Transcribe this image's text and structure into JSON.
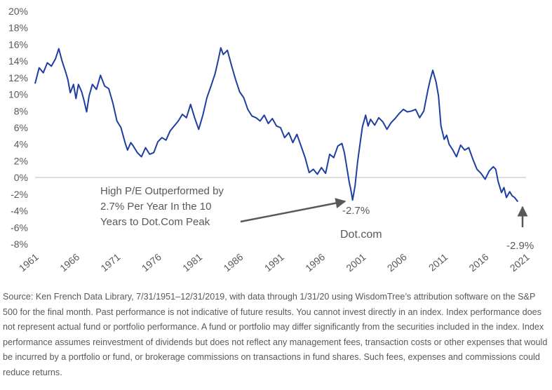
{
  "chart_data": {
    "type": "line",
    "colors": {
      "line": "#1f3fa0",
      "axis": "#bfbfbf",
      "text": "#595959",
      "arrow": "#595959"
    },
    "ylim": [
      -0.08,
      0.2
    ],
    "xlim": [
      1961,
      2021
    ],
    "y_ticks": [
      {
        "value": 0.2,
        "label": "20%"
      },
      {
        "value": 0.18,
        "label": "18%"
      },
      {
        "value": 0.16,
        "label": "16%"
      },
      {
        "value": 0.14,
        "label": "14%"
      },
      {
        "value": 0.12,
        "label": "12%"
      },
      {
        "value": 0.1,
        "label": "10%"
      },
      {
        "value": 0.08,
        "label": "8%"
      },
      {
        "value": 0.06,
        "label": "6%"
      },
      {
        "value": 0.04,
        "label": "4%"
      },
      {
        "value": 0.02,
        "label": "2%"
      },
      {
        "value": 0.0,
        "label": "0%"
      },
      {
        "value": -0.02,
        "label": "-2%"
      },
      {
        "value": -0.04,
        "label": "-4%"
      },
      {
        "value": -0.06,
        "label": "-6%"
      },
      {
        "value": -0.08,
        "label": "-8%"
      }
    ],
    "x_ticks": [
      {
        "value": 1961,
        "label": "1961"
      },
      {
        "value": 1966,
        "label": "1966"
      },
      {
        "value": 1971,
        "label": "1971"
      },
      {
        "value": 1976,
        "label": "1976"
      },
      {
        "value": 1981,
        "label": "1981"
      },
      {
        "value": 1986,
        "label": "1986"
      },
      {
        "value": 1991,
        "label": "1991"
      },
      {
        "value": 1996,
        "label": "1996"
      },
      {
        "value": 2001,
        "label": "2001"
      },
      {
        "value": 2006,
        "label": "2006"
      },
      {
        "value": 2011,
        "label": "2011"
      },
      {
        "value": 2016,
        "label": "2016"
      },
      {
        "value": 2021,
        "label": "2021"
      }
    ],
    "series": [
      {
        "points": [
          [
            1961.0,
            0.113
          ],
          [
            1961.5,
            0.132
          ],
          [
            1962.0,
            0.126
          ],
          [
            1962.5,
            0.138
          ],
          [
            1963.0,
            0.134
          ],
          [
            1963.5,
            0.143
          ],
          [
            1963.9,
            0.155
          ],
          [
            1964.3,
            0.14
          ],
          [
            1964.7,
            0.128
          ],
          [
            1965.0,
            0.118
          ],
          [
            1965.3,
            0.102
          ],
          [
            1965.7,
            0.112
          ],
          [
            1966.0,
            0.095
          ],
          [
            1966.3,
            0.112
          ],
          [
            1966.7,
            0.103
          ],
          [
            1967.0,
            0.092
          ],
          [
            1967.3,
            0.079
          ],
          [
            1967.6,
            0.098
          ],
          [
            1968.0,
            0.112
          ],
          [
            1968.5,
            0.106
          ],
          [
            1969.0,
            0.123
          ],
          [
            1969.5,
            0.11
          ],
          [
            1970.0,
            0.107
          ],
          [
            1970.5,
            0.09
          ],
          [
            1971.0,
            0.068
          ],
          [
            1971.5,
            0.06
          ],
          [
            1972.0,
            0.042
          ],
          [
            1972.3,
            0.033
          ],
          [
            1972.7,
            0.042
          ],
          [
            1973.0,
            0.038
          ],
          [
            1973.5,
            0.03
          ],
          [
            1974.0,
            0.025
          ],
          [
            1974.5,
            0.036
          ],
          [
            1975.0,
            0.028
          ],
          [
            1975.5,
            0.03
          ],
          [
            1976.0,
            0.043
          ],
          [
            1976.5,
            0.048
          ],
          [
            1977.0,
            0.045
          ],
          [
            1977.5,
            0.056
          ],
          [
            1978.0,
            0.062
          ],
          [
            1978.5,
            0.068
          ],
          [
            1979.0,
            0.076
          ],
          [
            1979.5,
            0.072
          ],
          [
            1980.0,
            0.088
          ],
          [
            1980.5,
            0.072
          ],
          [
            1981.0,
            0.058
          ],
          [
            1981.5,
            0.075
          ],
          [
            1982.0,
            0.096
          ],
          [
            1982.5,
            0.11
          ],
          [
            1983.0,
            0.125
          ],
          [
            1983.4,
            0.142
          ],
          [
            1983.7,
            0.156
          ],
          [
            1984.0,
            0.148
          ],
          [
            1984.5,
            0.153
          ],
          [
            1985.0,
            0.135
          ],
          [
            1985.5,
            0.118
          ],
          [
            1986.0,
            0.103
          ],
          [
            1986.5,
            0.096
          ],
          [
            1987.0,
            0.082
          ],
          [
            1987.5,
            0.074
          ],
          [
            1988.0,
            0.072
          ],
          [
            1988.5,
            0.068
          ],
          [
            1989.0,
            0.075
          ],
          [
            1989.5,
            0.065
          ],
          [
            1990.0,
            0.071
          ],
          [
            1990.5,
            0.062
          ],
          [
            1991.0,
            0.06
          ],
          [
            1991.5,
            0.048
          ],
          [
            1992.0,
            0.054
          ],
          [
            1992.5,
            0.042
          ],
          [
            1993.0,
            0.052
          ],
          [
            1993.5,
            0.038
          ],
          [
            1994.0,
            0.024
          ],
          [
            1994.5,
            0.006
          ],
          [
            1995.0,
            0.01
          ],
          [
            1995.5,
            0.004
          ],
          [
            1996.0,
            0.012
          ],
          [
            1996.5,
            0.005
          ],
          [
            1997.0,
            0.028
          ],
          [
            1997.5,
            0.024
          ],
          [
            1998.0,
            0.038
          ],
          [
            1998.5,
            0.041
          ],
          [
            1998.8,
            0.03
          ],
          [
            1999.1,
            0.012
          ],
          [
            1999.4,
            -0.006
          ],
          [
            1999.6,
            -0.015
          ],
          [
            1999.8,
            -0.027
          ],
          [
            2000.1,
            -0.01
          ],
          [
            2000.4,
            0.018
          ],
          [
            2000.7,
            0.04
          ],
          [
            2001.0,
            0.061
          ],
          [
            2001.4,
            0.075
          ],
          [
            2001.7,
            0.062
          ],
          [
            2002.0,
            0.07
          ],
          [
            2002.5,
            0.063
          ],
          [
            2003.0,
            0.072
          ],
          [
            2003.5,
            0.067
          ],
          [
            2004.0,
            0.058
          ],
          [
            2004.5,
            0.066
          ],
          [
            2005.0,
            0.071
          ],
          [
            2005.5,
            0.077
          ],
          [
            2006.0,
            0.082
          ],
          [
            2006.5,
            0.079
          ],
          [
            2007.0,
            0.08
          ],
          [
            2007.5,
            0.082
          ],
          [
            2008.0,
            0.072
          ],
          [
            2008.5,
            0.08
          ],
          [
            2009.0,
            0.105
          ],
          [
            2009.3,
            0.118
          ],
          [
            2009.6,
            0.129
          ],
          [
            2010.0,
            0.115
          ],
          [
            2010.3,
            0.098
          ],
          [
            2010.6,
            0.062
          ],
          [
            2011.0,
            0.046
          ],
          [
            2011.3,
            0.051
          ],
          [
            2011.6,
            0.04
          ],
          [
            2012.0,
            0.034
          ],
          [
            2012.5,
            0.025
          ],
          [
            2013.0,
            0.039
          ],
          [
            2013.5,
            0.033
          ],
          [
            2014.0,
            0.036
          ],
          [
            2014.5,
            0.022
          ],
          [
            2015.0,
            0.01
          ],
          [
            2015.5,
            0.005
          ],
          [
            2016.0,
            -0.002
          ],
          [
            2016.5,
            0.008
          ],
          [
            2017.0,
            0.013
          ],
          [
            2017.3,
            0.01
          ],
          [
            2017.6,
            -0.005
          ],
          [
            2018.0,
            -0.018
          ],
          [
            2018.3,
            -0.012
          ],
          [
            2018.6,
            -0.024
          ],
          [
            2019.0,
            -0.017
          ],
          [
            2019.3,
            -0.022
          ],
          [
            2019.6,
            -0.024
          ],
          [
            2020.0,
            -0.029
          ]
        ]
      }
    ],
    "annotations": {
      "text_line1": "High P/E Outperformed by",
      "text_line2": "2.7% Per Year In the 10",
      "text_line3": "Years to Dot.Com Peak",
      "peak_label": "-2.7%",
      "dotcom_label": "Dot.com",
      "end_label": "-2.9%"
    }
  },
  "source_note": "Source: Ken French Data Library, 7/31/1951–12/31/2019, with data through 1/31/20 using WisdomTree’s attribution software on the S&P 500 for the final month. Past performance is not indicative of future results. You cannot invest directly in an index. Index performance does not represent actual fund or portfolio performance. A fund or portfolio may differ significantly from the securities included in the index. Index performance assumes reinvestment of dividends but does not reflect any management fees, transaction costs or other expenses that would be incurred by a portfolio or fund, or brokerage commissions on transactions in fund shares. Such fees, expenses and commissions could reduce returns."
}
